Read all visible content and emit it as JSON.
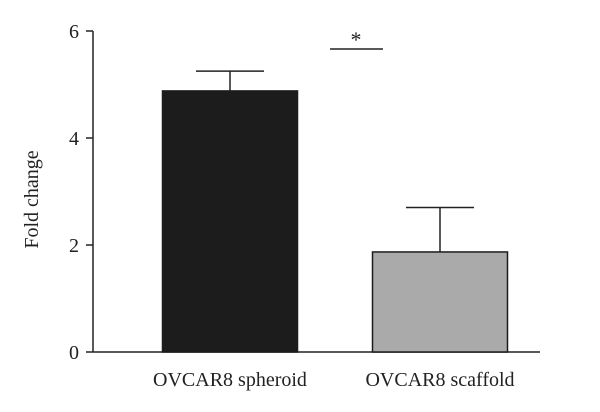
{
  "chart_data": {
    "type": "bar",
    "categories": [
      "OVCAR8 spheroid",
      "OVCAR8 scaffold"
    ],
    "values": [
      4.88,
      1.87
    ],
    "errors": [
      0.37,
      0.83
    ],
    "bar_colors": [
      "#1c1c1c",
      "#aaaaaa"
    ],
    "ylabel": "Fold change",
    "xlabel": "",
    "ylim": [
      0,
      6
    ],
    "yticks": [
      0,
      2,
      4,
      6
    ],
    "ytick_labels": [
      "0",
      "2",
      "4",
      "6"
    ],
    "significance": {
      "between": [
        0,
        1
      ],
      "label": "*"
    }
  }
}
